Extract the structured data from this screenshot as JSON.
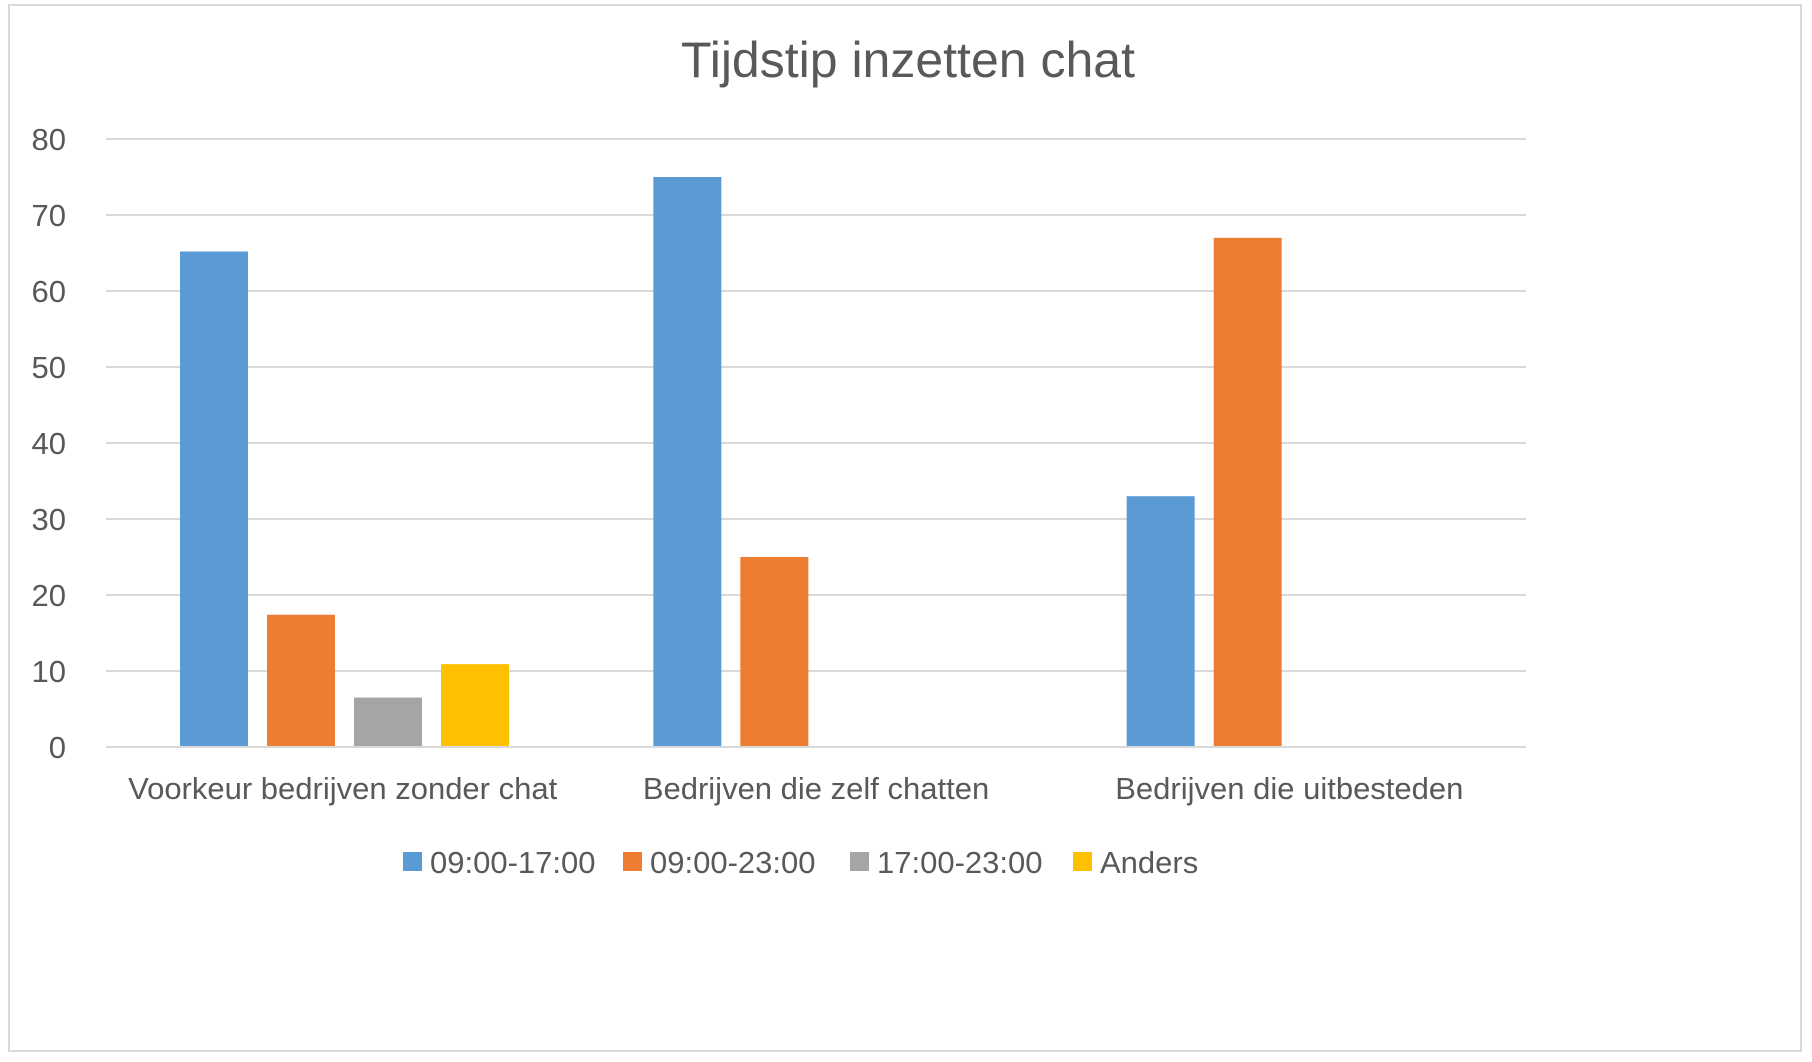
{
  "chart_data": {
    "type": "bar",
    "title": "Tijdstip inzetten chat",
    "xlabel": "",
    "ylabel": "",
    "ylim": [
      0,
      80
    ],
    "yticks": [
      0,
      10,
      20,
      30,
      40,
      50,
      60,
      70,
      80
    ],
    "grid": true,
    "legend_position": "bottom",
    "categories": [
      "Voorkeur bedrijven zonder chat",
      "Bedrijven die zelf chatten",
      "Bedrijven die uitbesteden"
    ],
    "series": [
      {
        "name": "09:00-17:00",
        "color": "#5b9bd5",
        "values": [
          65.2,
          75,
          33
        ]
      },
      {
        "name": "09:00-23:00",
        "color": "#ed7d31",
        "values": [
          17.4,
          25,
          67
        ]
      },
      {
        "name": "17:00-23:00",
        "color": "#a5a5a5",
        "values": [
          6.5,
          null,
          null
        ]
      },
      {
        "name": "Anders",
        "color": "#ffc000",
        "values": [
          10.9,
          null,
          null
        ]
      }
    ]
  }
}
